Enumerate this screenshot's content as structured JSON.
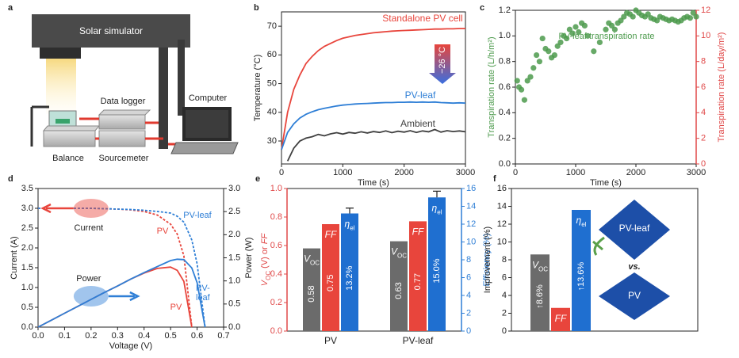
{
  "schematic": {
    "panel_label": "a",
    "solar_simulator": "Solar simulator",
    "data_logger": "Data logger",
    "computer": "Computer",
    "balance": "Balance",
    "sourcemeter": "Sourcemeter"
  },
  "chart_data": [
    {
      "type": "line",
      "panel_label": "b",
      "xlabel": "Time (s)",
      "ylabel": "Temperature (°C)",
      "xlim": [
        0,
        3000
      ],
      "xticks": [
        0,
        1000,
        2000,
        3000
      ],
      "ylim": [
        22,
        75
      ],
      "yticks": [
        30,
        40,
        50,
        60,
        70
      ],
      "annotation": "−26 °C",
      "x": [
        0,
        100,
        200,
        300,
        400,
        500,
        600,
        700,
        800,
        900,
        1000,
        1100,
        1200,
        1300,
        1400,
        1500,
        1600,
        1700,
        1800,
        1900,
        2000,
        2100,
        2200,
        2300,
        2400,
        2500,
        2600,
        2700,
        2800,
        2900,
        3000
      ],
      "series": [
        {
          "name": "Standalone PV cell",
          "color": "#e8453c",
          "values": [
            27,
            40,
            48,
            53,
            57,
            59.5,
            61.5,
            63,
            64,
            65,
            65.8,
            66.3,
            66.8,
            67.1,
            67.4,
            67.7,
            67.9,
            68.1,
            68.3,
            68.4,
            68.5,
            68.6,
            68.7,
            68.8,
            68.9,
            69,
            69,
            69.1,
            69.1,
            69.2,
            69.2
          ]
        },
        {
          "name": "PV-leaf",
          "color": "#2f7fd6",
          "values": [
            27,
            33,
            36,
            38,
            39.3,
            40.2,
            40.9,
            41.4,
            41.8,
            42.2,
            42.5,
            42.7,
            42.9,
            43,
            43.1,
            43.2,
            43.3,
            43.4,
            43.4,
            43.5,
            43.5,
            43.6,
            43.5,
            43.6,
            43.5,
            43.6,
            43.4,
            43.3,
            43.2,
            43.3,
            43.2
          ]
        },
        {
          "name": "Ambient",
          "color": "#404040",
          "values": [
            null,
            23,
            27.5,
            30,
            31,
            31.5,
            32.3,
            31.8,
            32.5,
            32.9,
            32.4,
            33,
            32.7,
            33.2,
            32.8,
            33.3,
            33,
            33.5,
            32.9,
            33.4,
            33.1,
            33.6,
            33,
            33.5,
            33.2,
            34,
            33.1,
            33.6,
            33.3,
            33.5,
            33.2
          ]
        }
      ]
    },
    {
      "type": "scatter",
      "panel_label": "c",
      "xlabel": "Time (s)",
      "ylabel": "Transpiration rate (L/h/m²)",
      "y2label": "Transpiration rate (L/day/m²)",
      "label": "PV-leaf transpiration rate",
      "color": "#4c9a4c",
      "y2color": "#e04848",
      "xlim": [
        0,
        3000
      ],
      "xticks": [
        0,
        1000,
        2000,
        3000
      ],
      "ylim": [
        0,
        1.2
      ],
      "yticks": [
        {
          "value": 0,
          "label": "0.0"
        },
        0.2,
        0.4,
        0.6,
        0.8,
        {
          "value": 1,
          "label": "1.0"
        },
        1.2
      ],
      "y2lim": [
        0,
        12
      ],
      "y2ticks": [
        0,
        2,
        4,
        6,
        8,
        10,
        12
      ],
      "x": [
        30,
        60,
        100,
        150,
        200,
        250,
        300,
        350,
        400,
        450,
        500,
        550,
        600,
        650,
        700,
        750,
        800,
        850,
        900,
        950,
        1000,
        1050,
        1100,
        1150,
        1200,
        1300,
        1400,
        1500,
        1550,
        1600,
        1650,
        1700,
        1750,
        1800,
        1850,
        1900,
        1950,
        2000,
        2050,
        2100,
        2150,
        2200,
        2250,
        2300,
        2350,
        2400,
        2450,
        2500,
        2550,
        2600,
        2650,
        2700,
        2750,
        2800,
        2850,
        2900,
        2950,
        3000
      ],
      "values": [
        0.65,
        0.6,
        0.58,
        0.5,
        0.65,
        0.68,
        0.75,
        0.85,
        0.8,
        0.98,
        0.9,
        0.88,
        0.83,
        0.85,
        0.92,
        0.95,
        1.0,
        0.98,
        1.05,
        1.02,
        1.07,
        1.03,
        1.1,
        1.08,
        1.0,
        0.88,
        0.95,
        1.05,
        1.1,
        1.08,
        1.05,
        1.1,
        1.12,
        1.15,
        1.18,
        1.17,
        1.15,
        1.2,
        1.18,
        1.16,
        1.15,
        1.17,
        1.14,
        1.13,
        1.12,
        1.15,
        1.14,
        1.13,
        1.12,
        1.13,
        1.12,
        1.11,
        1.12,
        1.14,
        1.15,
        1.14,
        1.18,
        1.15
      ]
    },
    {
      "type": "line",
      "panel_label": "d",
      "xlabel": "Voltage (V)",
      "ylabel": "Current (A)",
      "y2label": "Power (W)",
      "annotations": [
        "Current",
        "Power"
      ],
      "xlim": [
        0,
        0.7
      ],
      "xticks": [
        {
          "value": 0,
          "label": "0.0"
        },
        0.1,
        0.2,
        0.3,
        0.4,
        0.5,
        0.6,
        0.7
      ],
      "ylim": [
        0,
        3.5
      ],
      "yticks": [
        {
          "value": 0,
          "label": "0.0"
        },
        0.5,
        {
          "value": 1,
          "label": "1.0"
        },
        1.5,
        {
          "value": 2,
          "label": "2.0"
        },
        2.5,
        {
          "value": 3,
          "label": "3.0"
        },
        3.5
      ],
      "y2lim": [
        0,
        3
      ],
      "y2ticks": [
        {
          "value": 0,
          "label": "0.0"
        },
        0.5,
        {
          "value": 1,
          "label": "1.0"
        },
        1.5,
        {
          "value": 2,
          "label": "2.0"
        },
        2.5,
        {
          "value": 3,
          "label": "3.0"
        }
      ],
      "x": [
        0,
        0.05,
        0.1,
        0.15,
        0.2,
        0.25,
        0.3,
        0.35,
        0.4,
        0.45,
        0.5,
        0.525,
        0.55,
        0.58,
        0.6,
        0.63
      ],
      "series": [
        {
          "name": "PV",
          "color": "#e8453c",
          "dashed": true,
          "values": [
            3.0,
            3.0,
            3.0,
            3.0,
            3.0,
            2.99,
            2.98,
            2.96,
            2.92,
            2.83,
            2.6,
            2.35,
            1.8,
            0,
            null,
            null
          ]
        },
        {
          "name": "PV-leaf",
          "color": "#2f7fd6",
          "dashed": true,
          "values": [
            3.0,
            3.0,
            3.0,
            3.0,
            3.0,
            2.99,
            2.98,
            2.97,
            2.95,
            2.92,
            2.88,
            2.8,
            2.65,
            2.2,
            1.6,
            0
          ]
        },
        {
          "name": "PV",
          "color": "#e8453c",
          "axis": "y2",
          "values": [
            0,
            0.15,
            0.3,
            0.45,
            0.6,
            0.75,
            0.89,
            1.04,
            1.17,
            1.27,
            1.3,
            1.23,
            0.99,
            0,
            null,
            null
          ]
        },
        {
          "name": "PV-leaf",
          "color": "#2f7fd6",
          "axis": "y2",
          "values": [
            0,
            0.15,
            0.3,
            0.45,
            0.6,
            0.75,
            0.89,
            1.04,
            1.18,
            1.31,
            1.44,
            1.47,
            1.46,
            1.28,
            0.96,
            0
          ]
        }
      ]
    },
    {
      "type": "bar",
      "panel_label": "e",
      "ylabel": {
        "main": "V",
        "sub": "OC",
        "rest": " (V) or ",
        "italic": "FF"
      },
      "y2label": "Efficiency (%)",
      "ycolor": "#e04848",
      "y2color": "#2f7fd6",
      "ylim": [
        0,
        1
      ],
      "yticks": [
        {
          "value": 0,
          "label": "0.0"
        },
        0.2,
        0.4,
        0.6,
        0.8,
        {
          "value": 1,
          "label": "1.0"
        }
      ],
      "y2lim": [
        0,
        16
      ],
      "y2ticks": [
        0,
        2,
        4,
        6,
        8,
        10,
        12,
        14,
        16
      ],
      "categories": [
        "PV",
        "PV-leaf"
      ],
      "series": [
        {
          "name": "V",
          "name_sub": "OC",
          "color": "#6b6b6b",
          "values": [
            0.58,
            0.63
          ]
        },
        {
          "name": "FF",
          "color": "#e8453c",
          "values": [
            0.75,
            0.77
          ]
        },
        {
          "name": "η",
          "name_sub": "el",
          "color": "#1f6fd0",
          "axis": "y2",
          "values": [
            13.2,
            15.0
          ],
          "value_labels": [
            "13.2%",
            "15.0%"
          ],
          "errors": [
            0.6,
            0.7
          ]
        }
      ]
    },
    {
      "type": "bar",
      "panel_label": "f",
      "ylabel": "Improvement (%)",
      "ylim": [
        0,
        16
      ],
      "yticks": [
        0,
        2,
        4,
        6,
        8,
        10,
        12,
        14,
        16
      ],
      "categories": [
        "V",
        "FF",
        "η"
      ],
      "category_subs": [
        "OC",
        null,
        "el"
      ],
      "colors": [
        "#6b6b6b",
        "#e8453c",
        "#1f6fd0"
      ],
      "values": [
        8.6,
        2.6,
        13.6
      ],
      "value_labels": [
        "↑8.6%",
        null,
        "↑13.6%"
      ],
      "diagram": {
        "top": "PV-leaf",
        "middle": "vs.",
        "bottom": "PV"
      }
    }
  ]
}
